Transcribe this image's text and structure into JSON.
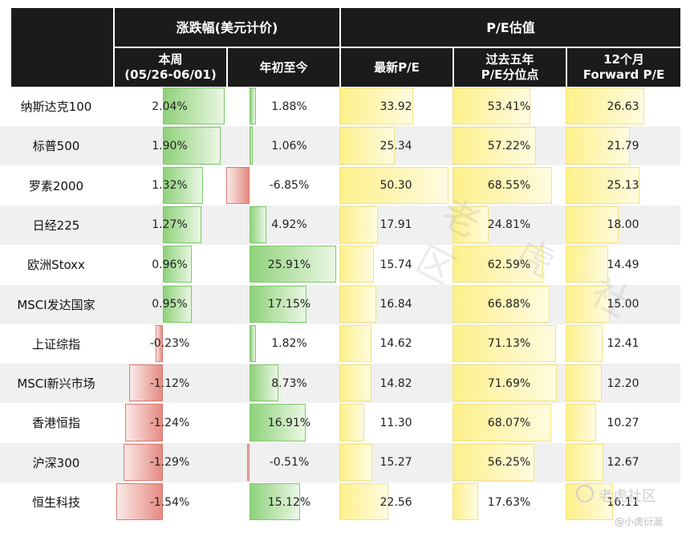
{
  "header": {
    "group_change": "涨跌幅(美元计价)",
    "group_pe": "P/E估值",
    "col_week": "本周\n(05/26-06/01)",
    "col_ytd": "年初至今",
    "col_pe": "最新P/E",
    "col_pct": "过去五年\nP/E分位点",
    "col_fwd": "12个月\nForward P/E"
  },
  "colors": {
    "header_bg": "#1b1b1b",
    "positive_bar": "#8fd17a",
    "negative_bar": "#e48a82",
    "pe_bar": "#fdf08a",
    "row_alt": "#f0f0f0"
  },
  "chart_data": {
    "type": "table",
    "columns": [
      "本周(05/26-06/01)",
      "年初至今",
      "最新P/E",
      "过去五年P/E分位点",
      "12个月Forward P/E"
    ],
    "rows": [
      {
        "name": "纳斯达克100",
        "week": 2.04,
        "ytd": 1.88,
        "pe": 33.92,
        "pct": 53.41,
        "fwd": 26.63
      },
      {
        "name": "标普500",
        "week": 1.9,
        "ytd": 1.06,
        "pe": 25.34,
        "pct": 57.22,
        "fwd": 21.79
      },
      {
        "name": "罗素2000",
        "week": 1.32,
        "ytd": -6.85,
        "pe": 50.3,
        "pct": 68.55,
        "fwd": 25.13
      },
      {
        "name": "日经225",
        "week": 1.27,
        "ytd": 4.92,
        "pe": 17.91,
        "pct": 24.81,
        "fwd": 18.0
      },
      {
        "name": "欧洲Stoxx",
        "week": 0.96,
        "ytd": 25.91,
        "pe": 15.74,
        "pct": 62.59,
        "fwd": 14.49
      },
      {
        "name": "MSCI发达国家",
        "week": 0.95,
        "ytd": 17.15,
        "pe": 16.84,
        "pct": 66.88,
        "fwd": 15.0
      },
      {
        "name": "上证综指",
        "week": -0.23,
        "ytd": 1.82,
        "pe": 14.62,
        "pct": 71.13,
        "fwd": 12.41
      },
      {
        "name": "MSCI新兴市场",
        "week": -1.12,
        "ytd": 8.73,
        "pe": 14.82,
        "pct": 71.69,
        "fwd": 12.2
      },
      {
        "name": "香港恒指",
        "week": -1.24,
        "ytd": 16.91,
        "pe": 11.3,
        "pct": 68.07,
        "fwd": 10.27
      },
      {
        "name": "沪深300",
        "week": -1.29,
        "ytd": -0.51,
        "pe": 15.27,
        "pct": 56.25,
        "fwd": 12.67
      },
      {
        "name": "恒生科技",
        "week": -1.54,
        "ytd": 15.12,
        "pe": 22.56,
        "pct": 17.63,
        "fwd": 16.11
      }
    ]
  },
  "watermark": {
    "center_text": "老虎社区",
    "logo_text": "老虎社区",
    "sub_text": "@小虎衍涎"
  }
}
